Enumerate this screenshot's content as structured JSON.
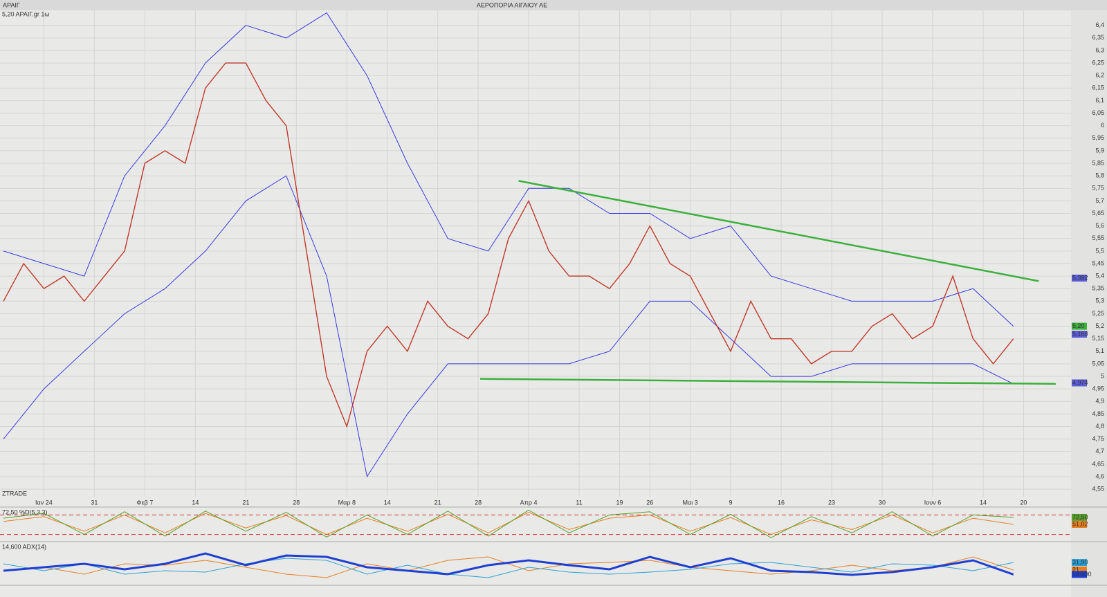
{
  "header": {
    "symbol": "ΑΡΑΙΓ",
    "title": "ΑΕΡΟΠΟΡΙΑ ΑΙΓΑΙΟΥ ΑΕ"
  },
  "chart_data": [
    {
      "type": "line",
      "label": "5,20 ΑΡΑΙΓ.gr 1ω",
      "watermark": "ZTRADE",
      "grid": true,
      "xlim": [
        -0.34,
        105.7
      ],
      "xticks": [
        {
          "value": 4,
          "label": "Ιαν 24"
        },
        {
          "value": 9,
          "label": "31"
        },
        {
          "value": 14,
          "label": "Φεβ 7"
        },
        {
          "value": 19,
          "label": "14"
        },
        {
          "value": 24,
          "label": "21"
        },
        {
          "value": 29,
          "label": "28"
        },
        {
          "value": 34,
          "label": "Μαρ 8"
        },
        {
          "value": 38,
          "label": "14"
        },
        {
          "value": 43,
          "label": "21"
        },
        {
          "value": 47,
          "label": "28"
        },
        {
          "value": 52,
          "label": "Απρ 4"
        },
        {
          "value": 57,
          "label": "11"
        },
        {
          "value": 61,
          "label": "19"
        },
        {
          "value": 64,
          "label": "26"
        },
        {
          "value": 68,
          "label": "Μαι 3"
        },
        {
          "value": 72,
          "label": "9"
        },
        {
          "value": 77,
          "label": "16"
        },
        {
          "value": 82,
          "label": "23"
        },
        {
          "value": 87,
          "label": "30"
        },
        {
          "value": 92,
          "label": "Ιουν 6"
        },
        {
          "value": 97,
          "label": "14"
        },
        {
          "value": 101,
          "label": "20"
        }
      ],
      "ylim": [
        4.52,
        6.46
      ],
      "yticks": [
        {
          "value": 4.55,
          "label": "4,55"
        },
        {
          "value": 4.6,
          "label": "4,6"
        },
        {
          "value": 4.65,
          "label": "4,65"
        },
        {
          "value": 4.7,
          "label": "4,7"
        },
        {
          "value": 4.75,
          "label": "4,75"
        },
        {
          "value": 4.8,
          "label": "4,8"
        },
        {
          "value": 4.85,
          "label": "4,85"
        },
        {
          "value": 4.9,
          "label": "4,9"
        },
        {
          "value": 4.95,
          "label": "4,95"
        },
        {
          "value": 5,
          "label": "5"
        },
        {
          "value": 5.05,
          "label": "5,05"
        },
        {
          "value": 5.1,
          "label": "5,1"
        },
        {
          "value": 5.15,
          "label": "5,15"
        },
        {
          "value": 5.2,
          "label": "5,2"
        },
        {
          "value": 5.25,
          "label": "5,25"
        },
        {
          "value": 5.3,
          "label": "5,3"
        },
        {
          "value": 5.35,
          "label": "5,35"
        },
        {
          "value": 5.4,
          "label": "5,4"
        },
        {
          "value": 5.45,
          "label": "5,45"
        },
        {
          "value": 5.5,
          "label": "5,5"
        },
        {
          "value": 5.55,
          "label": "5,55"
        },
        {
          "value": 5.6,
          "label": "5,6"
        },
        {
          "value": 5.65,
          "label": "5,65"
        },
        {
          "value": 5.7,
          "label": "5,7"
        },
        {
          "value": 5.75,
          "label": "5,75"
        },
        {
          "value": 5.8,
          "label": "5,8"
        },
        {
          "value": 5.85,
          "label": "5,85"
        },
        {
          "value": 5.9,
          "label": "5,9"
        },
        {
          "value": 5.95,
          "label": "5,95"
        },
        {
          "value": 6,
          "label": "6"
        },
        {
          "value": 6.05,
          "label": "6,05"
        },
        {
          "value": 6.1,
          "label": "6,1"
        },
        {
          "value": 6.15,
          "label": "6,15"
        },
        {
          "value": 6.2,
          "label": "6,2"
        },
        {
          "value": 6.25,
          "label": "6,25"
        },
        {
          "value": 6.3,
          "label": "6,3"
        },
        {
          "value": 6.35,
          "label": "6,35"
        },
        {
          "value": 6.4,
          "label": "6,4"
        }
      ],
      "series": [
        {
          "color": "#3a3ae0",
          "width": 1,
          "x": [
            0,
            4,
            8,
            12,
            16,
            20,
            24,
            28,
            32,
            36,
            40,
            44,
            48,
            52,
            56,
            60,
            64,
            68,
            72,
            76,
            80,
            84,
            88,
            92,
            96,
            100
          ],
          "values": [
            5.5,
            5.45,
            5.4,
            5.8,
            6.0,
            6.25,
            6.4,
            6.35,
            6.45,
            6.2,
            5.85,
            5.55,
            5.5,
            5.75,
            5.75,
            5.65,
            5.65,
            5.55,
            5.6,
            5.4,
            5.35,
            5.3,
            5.3,
            5.3,
            5.35,
            5.2
          ]
        },
        {
          "color": "#3a3ae0",
          "width": 1,
          "x": [
            0,
            4,
            8,
            12,
            16,
            20,
            24,
            28,
            32,
            36,
            40,
            44,
            48,
            52,
            56,
            60,
            64,
            68,
            72,
            76,
            80,
            84,
            88,
            92,
            96,
            100
          ],
          "values": [
            4.75,
            4.95,
            5.1,
            5.25,
            5.35,
            5.5,
            5.7,
            5.8,
            5.4,
            4.6,
            4.85,
            5.05,
            5.05,
            5.05,
            5.05,
            5.1,
            5.3,
            5.3,
            5.15,
            5.0,
            5.0,
            5.05,
            5.05,
            5.05,
            5.05,
            4.97
          ]
        },
        {
          "color": "#c0392b",
          "width": 1.4,
          "x": [
            0,
            2,
            4,
            6,
            8,
            10,
            12,
            14,
            16,
            18,
            20,
            22,
            24,
            26,
            28,
            30,
            32,
            34,
            36,
            38,
            40,
            42,
            44,
            46,
            48,
            50,
            52,
            54,
            56,
            58,
            60,
            62,
            64,
            66,
            68,
            70,
            72,
            74,
            76,
            78,
            80,
            82,
            84,
            86,
            88,
            90,
            92,
            94,
            96,
            98,
            100
          ],
          "values": [
            5.3,
            5.45,
            5.35,
            5.4,
            5.3,
            5.4,
            5.5,
            5.85,
            5.9,
            5.85,
            6.15,
            6.25,
            6.25,
            6.1,
            6.0,
            5.5,
            5.0,
            4.8,
            5.1,
            5.2,
            5.1,
            5.3,
            5.2,
            5.15,
            5.25,
            5.55,
            5.7,
            5.5,
            5.4,
            5.4,
            5.35,
            5.45,
            5.6,
            5.45,
            5.4,
            5.25,
            5.1,
            5.3,
            5.15,
            5.15,
            5.05,
            5.1,
            5.1,
            5.2,
            5.25,
            5.15,
            5.2,
            5.4,
            5.15,
            5.05,
            5.15
          ]
        }
      ],
      "trendlines": [
        {
          "color": "#3cb03c",
          "x": [
            51,
            102.5
          ],
          "y": [
            5.78,
            5.38
          ]
        },
        {
          "color": "#3cb03c",
          "x": [
            47.2,
            104.2
          ],
          "y": [
            4.99,
            4.97
          ]
        }
      ],
      "price_labels": [
        {
          "value": 5.392,
          "label": "5,392",
          "color": "#5b5bd6"
        },
        {
          "value": 5.2,
          "label": "5,20",
          "color": "#3cb03c"
        },
        {
          "value": 5.168,
          "label": "5,168",
          "color": "#5b5bd6"
        },
        {
          "value": 4.974,
          "label": "4,974",
          "color": "#5b5bd6"
        }
      ]
    },
    {
      "type": "line",
      "label": "72,50 %D(5,3,3)",
      "ylim": [
        0,
        100
      ],
      "levels": [
        80,
        20
      ],
      "series": [
        {
          "color": "#e67e22",
          "width": 1,
          "x": [
            0,
            4,
            8,
            12,
            16,
            20,
            24,
            28,
            32,
            36,
            40,
            44,
            48,
            52,
            56,
            60,
            64,
            68,
            72,
            76,
            80,
            84,
            88,
            92,
            96,
            100
          ],
          "values": [
            60,
            75,
            30,
            80,
            25,
            85,
            40,
            78,
            20,
            70,
            30,
            82,
            25,
            88,
            35,
            70,
            80,
            30,
            72,
            20,
            65,
            35,
            80,
            25,
            70,
            51.02
          ]
        },
        {
          "color": "#5aa02c",
          "width": 1,
          "x": [
            0,
            4,
            8,
            12,
            16,
            20,
            24,
            28,
            32,
            36,
            40,
            44,
            48,
            52,
            56,
            60,
            64,
            68,
            72,
            76,
            80,
            84,
            88,
            92,
            96,
            100
          ],
          "values": [
            70,
            85,
            20,
            90,
            15,
            92,
            30,
            88,
            12,
            80,
            20,
            92,
            15,
            95,
            25,
            80,
            90,
            20,
            82,
            10,
            75,
            25,
            90,
            15,
            80,
            72.5
          ]
        }
      ],
      "price_labels": [
        {
          "value": 72.5,
          "label": "72,50",
          "color": "#5aa02c"
        },
        {
          "value": 51.02,
          "label": "51,02",
          "color": "#e67e22"
        }
      ]
    },
    {
      "type": "line",
      "label": "14,600 ADX(14)",
      "ylim": [
        0,
        60
      ],
      "series": [
        {
          "color": "#e67e22",
          "width": 1,
          "x": [
            0,
            4,
            8,
            12,
            16,
            20,
            24,
            28,
            32,
            36,
            40,
            44,
            48,
            52,
            56,
            60,
            64,
            68,
            72,
            76,
            80,
            84,
            88,
            92,
            96,
            100
          ],
          "values": [
            20,
            25,
            15,
            30,
            28,
            35,
            25,
            15,
            10,
            30,
            20,
            35,
            40,
            20,
            30,
            32,
            35,
            25,
            20,
            15,
            20,
            28,
            20,
            25,
            40,
            21
          ]
        },
        {
          "color": "#2aa0d8",
          "width": 1,
          "x": [
            0,
            4,
            8,
            12,
            16,
            20,
            24,
            28,
            32,
            36,
            40,
            44,
            48,
            52,
            56,
            60,
            64,
            68,
            72,
            76,
            80,
            84,
            88,
            92,
            96,
            100
          ],
          "values": [
            30,
            20,
            30,
            15,
            20,
            18,
            30,
            38,
            35,
            15,
            28,
            15,
            10,
            25,
            18,
            15,
            18,
            22,
            30,
            32,
            25,
            18,
            30,
            28,
            20,
            31.9
          ]
        },
        {
          "color": "#1f3fd0",
          "width": 3,
          "x": [
            0,
            4,
            8,
            12,
            16,
            20,
            24,
            28,
            32,
            36,
            40,
            44,
            48,
            52,
            56,
            60,
            64,
            68,
            72,
            76,
            80,
            84,
            88,
            92,
            96,
            100
          ],
          "values": [
            20,
            25,
            30,
            22,
            30,
            45,
            28,
            42,
            40,
            25,
            20,
            15,
            28,
            35,
            28,
            22,
            40,
            25,
            38,
            20,
            18,
            14,
            18,
            25,
            35,
            14.6
          ]
        }
      ],
      "price_labels": [
        {
          "value": 31.9,
          "label": "31,90",
          "color": "#2aa0d8"
        },
        {
          "value": 21,
          "label": "21",
          "color": "#e67e22"
        },
        {
          "value": 14.6,
          "label": "14,600",
          "color": "#1f3fd0"
        }
      ]
    }
  ]
}
